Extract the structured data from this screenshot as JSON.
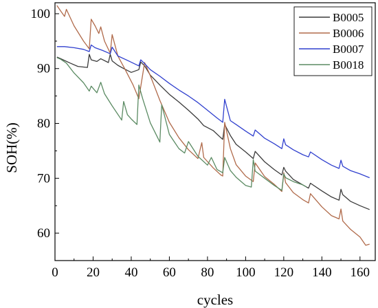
{
  "chart_data": {
    "type": "line",
    "xlabel": "cycles",
    "ylabel": "SOH(%)",
    "xlim": [
      0,
      168
    ],
    "ylim": [
      55,
      102
    ],
    "xticks": [
      0,
      20,
      40,
      60,
      80,
      100,
      120,
      140,
      160
    ],
    "yticks": [
      60,
      70,
      80,
      90,
      100
    ],
    "legend_position": "top-right",
    "grid": false,
    "series": [
      {
        "name": "B0005",
        "color": "#3a3a3a",
        "x": [
          1,
          3,
          8,
          12,
          17,
          18,
          19,
          22,
          24,
          28,
          29,
          30,
          33,
          36,
          40,
          44,
          45,
          47,
          50,
          55,
          60,
          65,
          70,
          75,
          78,
          83,
          87,
          88,
          89,
          92,
          95,
          100,
          104,
          105,
          110,
          115,
          119,
          120,
          121,
          125,
          130,
          133,
          134,
          140,
          145,
          149,
          150,
          151,
          155,
          160,
          165
        ],
        "y": [
          92.1,
          91.8,
          91,
          90.4,
          90.2,
          92.6,
          91.6,
          91.3,
          91.8,
          91.1,
          92.6,
          91.4,
          90.6,
          90,
          89.3,
          89.8,
          91.2,
          90.5,
          88.8,
          87,
          85.3,
          83.9,
          82.4,
          80.8,
          79.6,
          78.7,
          77.4,
          77.1,
          79.8,
          77.8,
          76.2,
          74.8,
          73.6,
          74.9,
          73,
          71.6,
          70.6,
          72,
          71.3,
          69.8,
          68.8,
          68.2,
          69.1,
          67.7,
          66.6,
          66,
          68,
          67,
          65.8,
          65,
          64.3
        ]
      },
      {
        "name": "B0006",
        "color": "#b06a4a",
        "x": [
          1,
          3,
          5,
          6,
          10,
          15,
          18,
          19,
          21,
          23,
          24,
          26,
          29,
          30,
          33,
          37,
          41,
          44,
          47,
          50,
          55,
          60,
          65,
          70,
          75,
          77,
          78,
          83,
          87,
          88,
          89,
          92,
          95,
          100,
          104,
          105,
          110,
          115,
          119,
          120,
          121,
          125,
          130,
          133,
          134,
          140,
          145,
          149,
          150,
          151,
          155,
          160,
          163,
          165
        ],
        "y": [
          101.5,
          100.5,
          99.5,
          100.8,
          97.8,
          95,
          93.6,
          99,
          97.8,
          96.4,
          97.6,
          95,
          92.8,
          96.2,
          92.3,
          89.7,
          87,
          84.5,
          91.1,
          88.7,
          84.2,
          80.2,
          77.4,
          75.2,
          73.6,
          76.5,
          73.8,
          71.9,
          70.6,
          70.4,
          80.2,
          75.4,
          72.5,
          70.4,
          69.4,
          72.8,
          70.3,
          68.9,
          67.6,
          71,
          69.2,
          67.4,
          66.1,
          65.5,
          67.2,
          64.8,
          63.2,
          62.6,
          64.4,
          62.2,
          60.7,
          59.3,
          57.8,
          58
        ]
      },
      {
        "name": "B0007",
        "color": "#2f3fce",
        "x": [
          1,
          5,
          10,
          15,
          18,
          19,
          21,
          25,
          29,
          30,
          33,
          38,
          44,
          45,
          47,
          50,
          55,
          60,
          65,
          70,
          75,
          80,
          85,
          88,
          89,
          92,
          95,
          100,
          104,
          105,
          110,
          115,
          119,
          120,
          121,
          125,
          130,
          133,
          134,
          140,
          145,
          149,
          150,
          151,
          155,
          160,
          165
        ],
        "y": [
          94,
          94,
          93.8,
          93.5,
          93.1,
          94.3,
          93.8,
          93.3,
          92.7,
          93.9,
          92.3,
          91.5,
          90.5,
          91.6,
          90.9,
          89.8,
          88.6,
          87.3,
          86.1,
          85,
          83.8,
          82.4,
          81,
          80.2,
          84.4,
          80.5,
          79.8,
          78.6,
          77.7,
          78.8,
          77.3,
          76.3,
          75.4,
          77.2,
          76.1,
          75.2,
          74.3,
          73.9,
          74.8,
          73.4,
          72.4,
          71.8,
          73.3,
          72.2,
          71.4,
          70.8,
          70.1
        ]
      },
      {
        "name": "B0018",
        "color": "#5a8a62",
        "x": [
          1,
          3,
          6,
          10,
          15,
          18,
          19,
          22,
          24,
          26,
          30,
          35,
          36,
          38,
          40,
          43,
          44,
          46,
          50,
          55,
          56,
          60,
          65,
          68,
          70,
          75,
          80,
          82,
          85,
          88,
          89,
          92,
          95,
          100,
          103,
          104,
          105,
          110,
          115,
          119,
          120,
          121,
          125,
          130,
          132
        ],
        "y": [
          92,
          91.7,
          91,
          89.2,
          87.4,
          85.9,
          86.8,
          85.6,
          87.5,
          85.4,
          83.2,
          80.6,
          84,
          81.6,
          80.8,
          79.8,
          87,
          84.5,
          80.1,
          76.6,
          83.4,
          78,
          75.4,
          74.6,
          76.7,
          74,
          72.4,
          73.8,
          71.6,
          71,
          73.8,
          71.4,
          70.2,
          68.7,
          68.4,
          73.4,
          71.3,
          70,
          68.7,
          67.8,
          70.8,
          70.1,
          69.4,
          68.8,
          68.4
        ]
      }
    ]
  }
}
